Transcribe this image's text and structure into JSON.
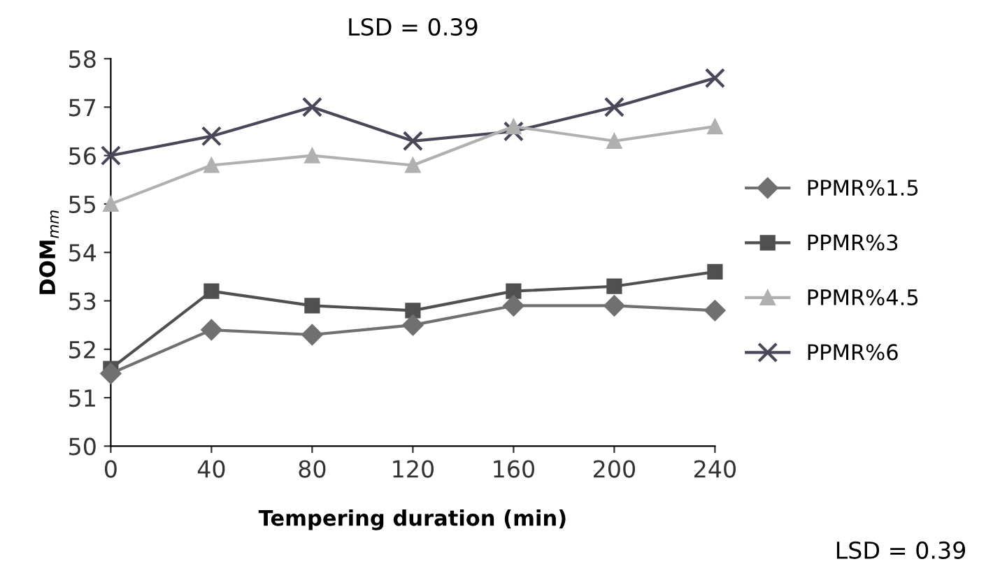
{
  "chart_data": {
    "type": "line",
    "title": "LSD = 0.39",
    "xlabel": "Tempering duration (min)",
    "ylabel": "DOM$_{mm}$",
    "x": [
      0,
      40,
      80,
      120,
      160,
      200,
      240
    ],
    "series": [
      {
        "name": "PPMR%1.5",
        "color": "#707070",
        "marker": "diamond",
        "values": [
          51.5,
          52.4,
          52.3,
          52.5,
          52.9,
          52.9,
          52.8
        ]
      },
      {
        "name": "PPMR%3",
        "color": "#505050",
        "marker": "square",
        "values": [
          51.6,
          53.2,
          52.9,
          52.8,
          53.2,
          53.3,
          53.6
        ]
      },
      {
        "name": "PPMR%4.5",
        "color": "#b0b0b0",
        "marker": "triangle",
        "values": [
          55.0,
          55.8,
          56.0,
          55.8,
          56.6,
          56.3,
          56.6
        ]
      },
      {
        "name": "PPMR%6",
        "color": "#4a4858",
        "marker": "cross",
        "values": [
          56.0,
          56.4,
          57.0,
          56.3,
          56.5,
          57.0,
          57.6
        ]
      }
    ],
    "xlim": [
      0,
      240
    ],
    "xticks": [
      0,
      40,
      80,
      120,
      160,
      200,
      240
    ],
    "ylim": [
      50,
      58
    ],
    "yticks": [
      50,
      51,
      52,
      53,
      54,
      55,
      56,
      57,
      58
    ],
    "grid": false,
    "legend": "right",
    "line_style": "solid",
    "annotations": [
      "LSD = 0.39"
    ]
  }
}
